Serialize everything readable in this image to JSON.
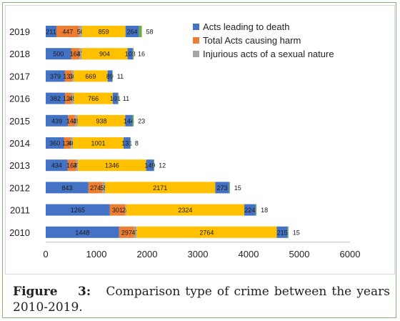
{
  "caption": {
    "label": "Figure",
    "number": "3:",
    "text": "Comparison type of crime between the years 2010-2019."
  },
  "chart_data": {
    "type": "bar",
    "orientation": "horizontal",
    "stacked": true,
    "categories": [
      "2010",
      "2011",
      "2012",
      "2013",
      "2014",
      "2015",
      "2016",
      "2017",
      "2018",
      "2019"
    ],
    "series": [
      {
        "name": "Acts leading to death",
        "color": "#4472c4",
        "values": [
          1448,
          1265,
          843,
          434,
          360,
          439,
          382,
          379,
          500,
          211
        ]
      },
      {
        "name": "Total Acts causing harm",
        "color": "#ed7d31",
        "values": [
          297,
          301,
          274,
          164,
          135,
          142,
          124,
          137,
          163,
          447
        ]
      },
      {
        "name": "Injurious acts of a sexual nature",
        "color": "#a5a5a5",
        "values": [
          47,
          24,
          55,
          37,
          40,
          49,
          49,
          36,
          47,
          56
        ]
      },
      {
        "name": "",
        "color": "#ffc000",
        "values": [
          2764,
          2324,
          2171,
          1346,
          1001,
          938,
          766,
          669,
          904,
          859
        ]
      },
      {
        "name": "",
        "color": "#4472c4",
        "values": [
          215,
          224,
          273,
          149,
          131,
          144,
          101,
          89,
          103,
          264
        ]
      },
      {
        "name": "",
        "color": "#70ad47",
        "values": [
          15,
          18,
          15,
          12,
          8,
          23,
          11,
          11,
          16,
          58
        ]
      }
    ],
    "data_labels": [
      [
        "1448",
        "297",
        "47",
        "2764",
        "215",
        "15"
      ],
      [
        "1265",
        "301",
        "24",
        "2324",
        "224",
        "18"
      ],
      [
        "843",
        "274",
        "55",
        "2171",
        "273",
        "15"
      ],
      [
        "434",
        "164",
        "37",
        "1346",
        "149",
        "12"
      ],
      [
        "360",
        "135",
        "40",
        "1001",
        "131",
        "8"
      ],
      [
        "439",
        "142",
        "49",
        "938",
        "144",
        "23"
      ],
      [
        "382",
        "124",
        "49",
        "766",
        "101",
        "11"
      ],
      [
        "379",
        "137",
        "36",
        "669",
        "89",
        "11"
      ],
      [
        "500",
        "163",
        "47",
        "904",
        "103",
        "16"
      ],
      [
        "211",
        "447",
        "56",
        "859",
        "264",
        "58"
      ]
    ],
    "xlim": [
      0,
      6000
    ],
    "xticks": [
      "0",
      "1000",
      "2000",
      "3000",
      "4000",
      "5000",
      "6000"
    ],
    "grid": false,
    "legend_position": "top-right"
  }
}
